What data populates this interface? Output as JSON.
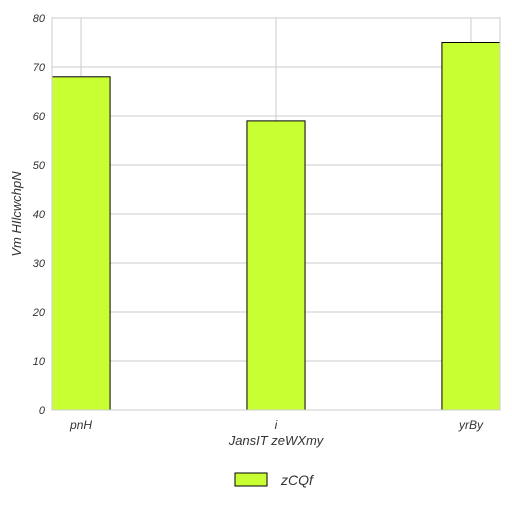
{
  "chart_data": {
    "type": "bar",
    "categories": [
      "pnH",
      "i",
      "yrBy"
    ],
    "series": [
      {
        "name": "zCQf",
        "values": [
          68,
          59,
          75
        ]
      }
    ],
    "xlabel": "JansIT zeWXmy",
    "ylabel": "Vm  HIlcwchpN",
    "ylim": [
      0,
      80
    ],
    "yticks": [
      "0",
      "10",
      "20",
      "30",
      "40",
      "50",
      "60",
      "70",
      "80"
    ],
    "grid": true,
    "legend_position": "bottom-center",
    "colors": {
      "bar_fill": "#c8ff33",
      "bar_stroke": "#000000",
      "grid": "#cccccc",
      "axis": "#cccccc",
      "text": "#333333"
    }
  }
}
